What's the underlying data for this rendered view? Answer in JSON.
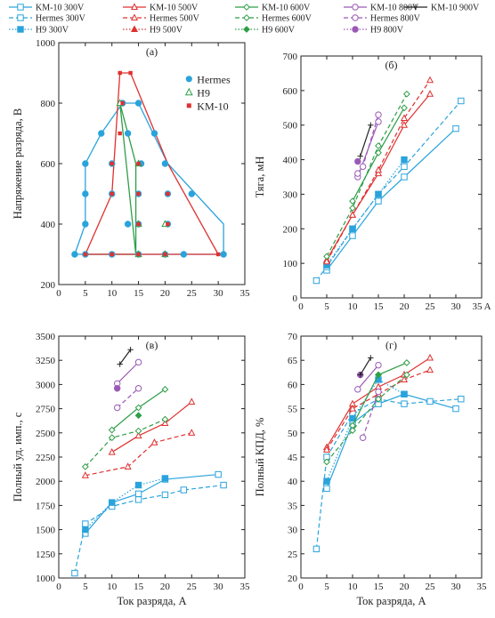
{
  "legend": {
    "entries": [
      {
        "label": "KM-10 300V",
        "color": "#2aa3dc",
        "dash": "solid",
        "marker": "square-open"
      },
      {
        "label": "KM-10 500V",
        "color": "#e03030",
        "dash": "solid",
        "marker": "triangle-open"
      },
      {
        "label": "KM-10 600V",
        "color": "#2e9e48",
        "dash": "solid",
        "marker": "diamond-open"
      },
      {
        "label": "KM-10 800V",
        "color": "#9b59b6",
        "dash": "solid",
        "marker": "circle-open"
      },
      {
        "label": "KM-10 900V",
        "color": "#222222",
        "dash": "solid",
        "marker": "plus"
      },
      {
        "label": "Hermes 300V",
        "color": "#2aa3dc",
        "dash": "dashed",
        "marker": "square-open"
      },
      {
        "label": "Hermes 500V",
        "color": "#e03030",
        "dash": "dashed",
        "marker": "triangle-open"
      },
      {
        "label": "Hermes 600V",
        "color": "#2e9e48",
        "dash": "dashed",
        "marker": "diamond-open"
      },
      {
        "label": "Hermes 800V",
        "color": "#9b59b6",
        "dash": "dashed",
        "marker": "circle-open"
      },
      {
        "label": "H9 300V",
        "color": "#2aa3dc",
        "dash": "dotted",
        "marker": "square-filled"
      },
      {
        "label": "H9 500V",
        "color": "#e03030",
        "dash": "dotted",
        "marker": "triangle-filled"
      },
      {
        "label": "H9 600V",
        "color": "#2e9e48",
        "dash": "dotted",
        "marker": "diamond-filled"
      },
      {
        "label": "H9 800V",
        "color": "#9b59b6",
        "dash": "dotted",
        "marker": "circle-filled"
      }
    ]
  },
  "chart_data": [
    {
      "type": "scatter",
      "title": "(а)",
      "xlabel": "",
      "ylabel": "Напряжение разряда, В",
      "xlim": [
        0,
        35
      ],
      "ylim": [
        200,
        1000
      ],
      "xticks": [
        0,
        5,
        10,
        15,
        20,
        25,
        30,
        35
      ],
      "yticks": [
        200,
        400,
        600,
        800,
        1000
      ],
      "ytick_labels": [
        "200",
        "400",
        "600",
        "800",
        "1000"
      ],
      "legend_position": "right",
      "legend": [
        {
          "label": "Hermes",
          "color": "#2aa3dc",
          "marker": "circle-filled"
        },
        {
          "label": "H9",
          "color": "#2e9e48",
          "marker": "triangle-open"
        },
        {
          "label": "KM-10",
          "color": "#e03030",
          "marker": "square-filled"
        }
      ],
      "envelopes": [
        {
          "name": "Hermes",
          "color": "#2aa3dc",
          "x": [
            3,
            5,
            5,
            8,
            12,
            15,
            20.5,
            31,
            31,
            3
          ],
          "y": [
            300,
            400,
            600,
            700,
            800,
            800,
            600,
            400,
            300,
            300
          ]
        },
        {
          "name": "H9",
          "color": "#2e9e48",
          "x": [
            5,
            14.5,
            11.5,
            14.5,
            14.5
          ],
          "y": [
            300,
            300,
            800,
            600,
            300
          ]
        },
        {
          "name": "KM-10",
          "color": "#e03030",
          "x": [
            5,
            10,
            11.5,
            13.5,
            20.5,
            30,
            5
          ],
          "y": [
            300,
            500,
            900,
            900,
            600,
            300,
            300
          ]
        }
      ],
      "points": [
        {
          "series": "Hermes",
          "x": [
            3,
            5,
            10,
            15,
            20,
            23.5,
            31,
            5,
            13,
            15,
            20.5,
            5,
            10,
            15,
            20.5,
            25,
            5,
            10,
            15.5,
            20,
            8,
            13,
            18,
            12,
            15
          ],
          "y": [
            300,
            300,
            300,
            300,
            300,
            300,
            300,
            400,
            400,
            400,
            400,
            500,
            500,
            500,
            500,
            500,
            600,
            600,
            600,
            600,
            700,
            700,
            700,
            800,
            800
          ]
        },
        {
          "series": "H9",
          "x": [
            15,
            20,
            15,
            20,
            15,
            11.5
          ],
          "y": [
            300,
            300,
            400,
            400,
            600,
            800
          ]
        },
        {
          "series": "KM-10",
          "x": [
            5,
            10,
            15,
            20,
            30,
            15,
            20.5,
            10,
            15,
            20.5,
            10,
            15,
            11.5,
            12,
            11.5,
            13.5
          ],
          "y": [
            300,
            300,
            300,
            300,
            300,
            400,
            400,
            500,
            500,
            500,
            600,
            600,
            700,
            800,
            900,
            900
          ]
        }
      ]
    },
    {
      "type": "line",
      "title": "(б)",
      "xlabel": "",
      "ylabel": "Тяга, мН",
      "xlim": [
        0,
        35
      ],
      "ylim": [
        0,
        700
      ],
      "xticks": [
        0,
        5,
        10,
        15,
        20,
        25,
        30,
        35
      ],
      "xtick_labels": [
        "0",
        "5",
        "10",
        "15",
        "20",
        "25",
        "30",
        "35 A"
      ],
      "yticks": [
        0,
        100,
        200,
        300,
        400,
        500,
        600,
        700
      ],
      "ytick_labels": [
        "0",
        "100",
        "200",
        "300",
        "400",
        "500",
        "600",
        "700"
      ],
      "series": [
        {
          "name": "KM-10 300V",
          "x": [
            5,
            10,
            15,
            20,
            30
          ],
          "y": [
            80,
            180,
            280,
            350,
            490
          ]
        },
        {
          "name": "Hermes 300V",
          "x": [
            3,
            5,
            10,
            15,
            20,
            31
          ],
          "y": [
            50,
            90,
            200,
            300,
            380,
            570
          ]
        },
        {
          "name": "H9 300V",
          "x": [
            5,
            10,
            15,
            20
          ],
          "y": [
            95,
            200,
            300,
            400
          ]
        },
        {
          "name": "KM-10 500V",
          "x": [
            5,
            10,
            15,
            20,
            25
          ],
          "y": [
            110,
            240,
            360,
            500,
            590
          ]
        },
        {
          "name": "Hermes 500V",
          "x": [
            5,
            10,
            15,
            20,
            25
          ],
          "y": [
            105,
            240,
            370,
            520,
            630
          ]
        },
        {
          "name": "KM-10 600V",
          "x": [
            10,
            15,
            20
          ],
          "y": [
            280,
            420,
            550
          ]
        },
        {
          "name": "Hermes 600V",
          "x": [
            5,
            10,
            15,
            20.5
          ],
          "y": [
            120,
            260,
            440,
            590
          ]
        },
        {
          "name": "KM-10 800V",
          "x": [
            11,
            15
          ],
          "y": [
            350,
            510
          ]
        },
        {
          "name": "Hermes 800V",
          "x": [
            11,
            12,
            15
          ],
          "y": [
            360,
            380,
            530
          ]
        },
        {
          "name": "H9 800V",
          "x": [
            11
          ],
          "y": [
            395
          ]
        },
        {
          "name": "KM-10 900V",
          "x": [
            11.5,
            13.5
          ],
          "y": [
            410,
            500
          ]
        }
      ]
    },
    {
      "type": "line",
      "title": "(в)",
      "xlabel": "Ток разряда, А",
      "ylabel": "Полный уд. имп., с",
      "xlim": [
        0,
        35
      ],
      "ylim": [
        1000,
        3500
      ],
      "xticks": [
        0,
        5,
        10,
        15,
        20,
        25,
        30,
        35
      ],
      "yticks": [
        1000,
        1250,
        1500,
        1750,
        2000,
        2250,
        2500,
        2750,
        3000,
        3250,
        3500
      ],
      "ytick_labels": [
        "1000",
        "1250",
        "1500",
        "1750",
        "2000",
        "2250",
        "2500",
        "2750",
        "3000",
        "3250",
        "3500"
      ],
      "series": [
        {
          "name": "KM-10 300V",
          "x": [
            5,
            10,
            15,
            20,
            30
          ],
          "y": [
            1460,
            1780,
            1870,
            2020,
            2070
          ]
        },
        {
          "name": "Hermes 300V",
          "x": [
            3,
            5,
            10,
            15,
            20,
            23.5,
            31
          ],
          "y": [
            1050,
            1560,
            1740,
            1810,
            1860,
            1910,
            1960
          ]
        },
        {
          "name": "H9 300V",
          "x": [
            5,
            10,
            15,
            20
          ],
          "y": [
            1500,
            1780,
            1960,
            2030
          ]
        },
        {
          "name": "KM-10 500V",
          "x": [
            10,
            15,
            20,
            25
          ],
          "y": [
            2300,
            2470,
            2600,
            2820
          ]
        },
        {
          "name": "Hermes 500V",
          "x": [
            5,
            13,
            18,
            25
          ],
          "y": [
            2060,
            2150,
            2400,
            2500
          ]
        },
        {
          "name": "KM-10 600V",
          "x": [
            10,
            15,
            20
          ],
          "y": [
            2530,
            2760,
            2950
          ]
        },
        {
          "name": "Hermes 600V",
          "x": [
            5,
            10,
            15,
            20
          ],
          "y": [
            2150,
            2450,
            2520,
            2640
          ]
        },
        {
          "name": "H9 600V",
          "x": [
            15
          ],
          "y": [
            2680
          ]
        },
        {
          "name": "KM-10 800V",
          "x": [
            11,
            15
          ],
          "y": [
            3010,
            3230
          ]
        },
        {
          "name": "Hermes 800V",
          "x": [
            11,
            15
          ],
          "y": [
            2760,
            2960
          ]
        },
        {
          "name": "H9 800V",
          "x": [
            11
          ],
          "y": [
            2960
          ]
        },
        {
          "name": "KM-10 900V",
          "x": [
            11.5,
            13.5
          ],
          "y": [
            3210,
            3360
          ]
        }
      ]
    },
    {
      "type": "line",
      "title": "(г)",
      "xlabel": "Ток разряда, А",
      "ylabel": "Полный КПД, %",
      "xlim": [
        0,
        35
      ],
      "ylim": [
        20,
        70
      ],
      "xticks": [
        0,
        5,
        10,
        15,
        20,
        25,
        30,
        35
      ],
      "yticks": [
        20,
        25,
        30,
        35,
        40,
        45,
        50,
        55,
        60,
        65,
        70
      ],
      "ytick_labels": [
        "20",
        "25",
        "30",
        "35",
        "40",
        "45",
        "50",
        "55",
        "60",
        "65",
        "70"
      ],
      "series": [
        {
          "name": "KM-10 300V",
          "x": [
            5,
            10,
            15,
            20,
            30
          ],
          "y": [
            38.5,
            52,
            56,
            58,
            55
          ]
        },
        {
          "name": "Hermes 300V",
          "x": [
            3,
            5,
            10,
            15,
            20,
            25,
            31
          ],
          "y": [
            26,
            45,
            54,
            57,
            56,
            56.5,
            57
          ]
        },
        {
          "name": "H9 300V",
          "x": [
            5,
            10,
            15,
            20
          ],
          "y": [
            40,
            53,
            61,
            58
          ]
        },
        {
          "name": "KM-10 500V",
          "x": [
            5,
            10,
            15,
            20,
            25
          ],
          "y": [
            47,
            56,
            59.5,
            62,
            65.5
          ]
        },
        {
          "name": "Hermes 500V",
          "x": [
            5,
            10,
            15,
            20,
            25
          ],
          "y": [
            46.5,
            55,
            58,
            61,
            63
          ]
        },
        {
          "name": "KM-10 600V",
          "x": [
            10,
            15,
            20.5
          ],
          "y": [
            51.5,
            62,
            64.5
          ]
        },
        {
          "name": "Hermes 600V",
          "x": [
            5,
            10,
            15,
            20.5
          ],
          "y": [
            44,
            50.5,
            57,
            62
          ]
        },
        {
          "name": "H9 600V",
          "x": [
            15
          ],
          "y": [
            62
          ]
        },
        {
          "name": "KM-10 800V",
          "x": [
            11,
            15
          ],
          "y": [
            59,
            64
          ]
        },
        {
          "name": "Hermes 800V",
          "x": [
            12,
            15
          ],
          "y": [
            49,
            58.5
          ]
        },
        {
          "name": "H9 800V",
          "x": [
            11.5
          ],
          "y": [
            62
          ]
        },
        {
          "name": "KM-10 900V",
          "x": [
            11.5,
            13.5
          ],
          "y": [
            62,
            65.5
          ]
        }
      ]
    }
  ]
}
